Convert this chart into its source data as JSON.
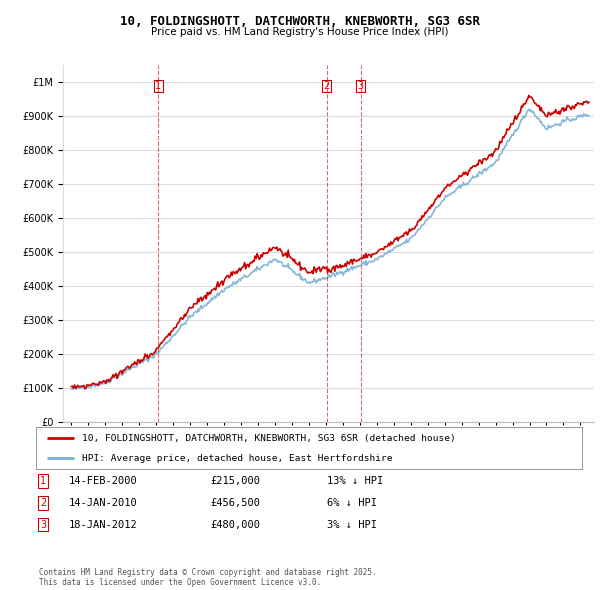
{
  "title": "10, FOLDINGSHOTT, DATCHWORTH, KNEBWORTH, SG3 6SR",
  "subtitle": "Price paid vs. HM Land Registry's House Price Index (HPI)",
  "red_line_label": "10, FOLDINGSHOTT, DATCHWORTH, KNEBWORTH, SG3 6SR (detached house)",
  "blue_line_label": "HPI: Average price, detached house, East Hertfordshire",
  "transactions": [
    {
      "num": 1,
      "date": "14-FEB-2000",
      "price": "£215,000",
      "rel": "13% ↓ HPI",
      "year": 2000.12
    },
    {
      "num": 2,
      "date": "14-JAN-2010",
      "price": "£456,500",
      "rel": "6% ↓ HPI",
      "year": 2010.04
    },
    {
      "num": 3,
      "date": "18-JAN-2012",
      "price": "£480,000",
      "rel": "3% ↓ HPI",
      "year": 2012.04
    }
  ],
  "footnote": "Contains HM Land Registry data © Crown copyright and database right 2025.\nThis data is licensed under the Open Government Licence v3.0.",
  "ylim": [
    0,
    1050000
  ],
  "xlim_start": 1994.5,
  "xlim_end": 2025.8,
  "red_color": "#cc0000",
  "blue_color": "#7ab0d4",
  "grid_color": "#dddddd",
  "background_color": "#ffffff"
}
